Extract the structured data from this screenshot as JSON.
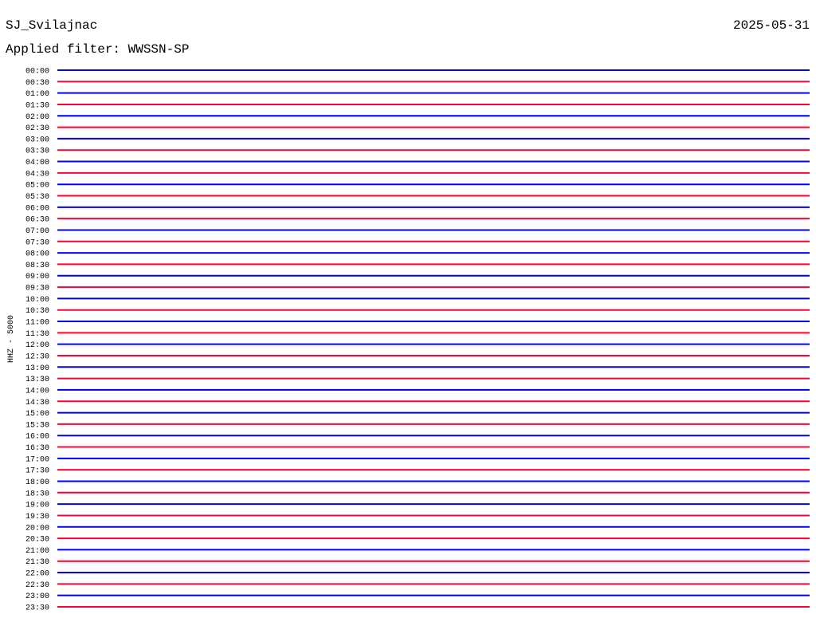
{
  "header": {
    "station": "SJ_Svilajnac",
    "date": "2025-05-31",
    "filter": "Applied filter: WWSSN-SP"
  },
  "axis_label": "HHZ - 5000",
  "trace_colors": [
    "#0000ff",
    "#ff0033"
  ],
  "times": [
    "00:00",
    "00:30",
    "01:00",
    "01:30",
    "02:00",
    "02:30",
    "03:00",
    "03:30",
    "04:00",
    "04:30",
    "05:00",
    "05:30",
    "06:00",
    "06:30",
    "07:00",
    "07:30",
    "08:00",
    "08:30",
    "09:00",
    "09:30",
    "10:00",
    "10:30",
    "11:00",
    "11:30",
    "12:00",
    "12:30",
    "13:00",
    "13:30",
    "14:00",
    "14:30",
    "15:00",
    "15:30",
    "16:00",
    "16:30",
    "17:00",
    "17:30",
    "18:00",
    "18:30",
    "19:00",
    "19:30",
    "20:00",
    "20:30",
    "21:00",
    "21:30",
    "22:00",
    "22:30",
    "23:00",
    "23:30"
  ]
}
